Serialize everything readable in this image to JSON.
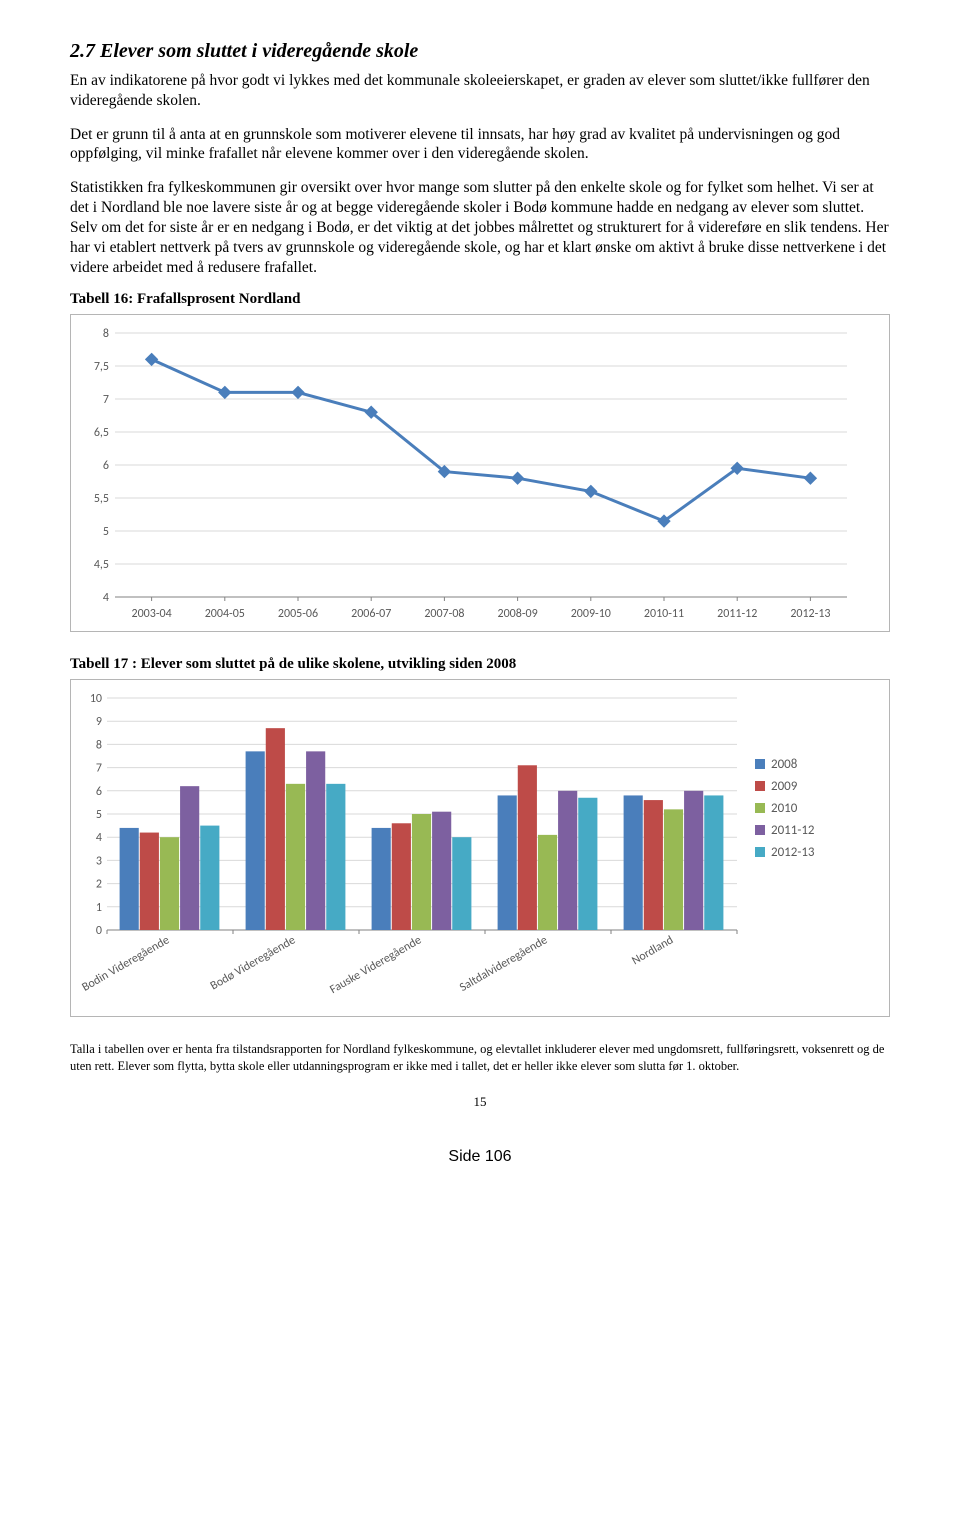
{
  "heading": "2.7  Elever som sluttet i videregående skole",
  "para1": "En av indikatorene på hvor godt vi lykkes med det kommunale skoleeierskapet, er graden av elever som sluttet/ikke fullfører den videregående skolen.",
  "para2": "Det er grunn til å anta at en grunnskole som motiverer elevene til innsats, har høy grad av kvalitet på undervisningen og god oppfølging, vil minke frafallet når elevene kommer over i den videregående skolen.",
  "para3": "Statistikken fra fylkeskommunen gir oversikt over hvor mange som slutter på den enkelte skole og for fylket som helhet. Vi ser at det i Nordland ble noe lavere siste år og at begge videregående skoler i Bodø kommune hadde en nedgang av elever som sluttet. Selv om det for siste år er en nedgang i Bodø, er det viktig at det jobbes målrettet og strukturert for å videreføre en slik tendens. Her har vi etablert nettverk på tvers av grunnskole og videregående skole, og har et klart ønske om aktivt å bruke disse nettverkene i det videre arbeidet med å redusere frafallet.",
  "caption1": "Tabell 16: Frafallsprosent Nordland",
  "caption2": "Tabell 17  : Elever som sluttet på de ulike skolene, utvikling siden 2008",
  "line_chart": {
    "type": "line",
    "x_labels": [
      "2003-04",
      "2004-05",
      "2005-06",
      "2006-07",
      "2007-08",
      "2008-09",
      "2009-10",
      "2010-11",
      "2011-12",
      "2012-13"
    ],
    "values": [
      7.6,
      7.1,
      7.1,
      6.8,
      5.9,
      5.8,
      5.6,
      5.15,
      5.95,
      5.8
    ],
    "ylim": [
      4,
      8
    ],
    "ytick_step": 0.5,
    "line_color": "#4a7ebb",
    "marker_color": "#4a7ebb",
    "marker_size": 6,
    "line_width": 3,
    "grid_color": "#d9d9d9",
    "axis_color": "#828282",
    "text_color": "#595959",
    "background": "#ffffff",
    "font_family": "Calibri",
    "font_size": 12
  },
  "bar_chart": {
    "type": "grouped-bar",
    "categories": [
      "Bodin Videregående",
      "Bodø Videregående",
      "Fauske Videregående",
      "Saltdalvideregående",
      "Nordland"
    ],
    "series": [
      {
        "label": "2008",
        "color": "#4a7ebb",
        "values": [
          4.4,
          7.7,
          4.4,
          5.8,
          5.8
        ]
      },
      {
        "label": "2009",
        "color": "#be4b48",
        "values": [
          4.2,
          8.7,
          4.6,
          7.1,
          5.6
        ]
      },
      {
        "label": "2010",
        "color": "#98b954",
        "values": [
          4.0,
          6.3,
          5.0,
          4.1,
          5.2
        ]
      },
      {
        "label": "2011-12",
        "color": "#7d60a0",
        "values": [
          6.2,
          7.7,
          5.1,
          6.0,
          6.0
        ]
      },
      {
        "label": "2012-13",
        "color": "#46aac5",
        "values": [
          4.5,
          6.3,
          4.0,
          5.7,
          5.8
        ]
      }
    ],
    "ylim": [
      0,
      10
    ],
    "ytick_step": 1,
    "grid_color": "#d9d9d9",
    "axis_color": "#828282",
    "text_color": "#595959",
    "background": "#ffffff",
    "font_family": "Calibri",
    "font_size": 12,
    "bar_width": 0.16
  },
  "footnote": "Talla i tabellen over er henta fra tilstandsrapporten for Nordland fylkeskommune, og elevtallet inkluderer elever med ungdomsrett, fullføringsrett, voksenrett og de uten rett. Elever som flytta, bytta skole eller utdanningsprogram er ikke med i tallet, det er heller ikke elever som slutta før 1. oktober.",
  "page_number": "15",
  "side_label": "Side 106"
}
